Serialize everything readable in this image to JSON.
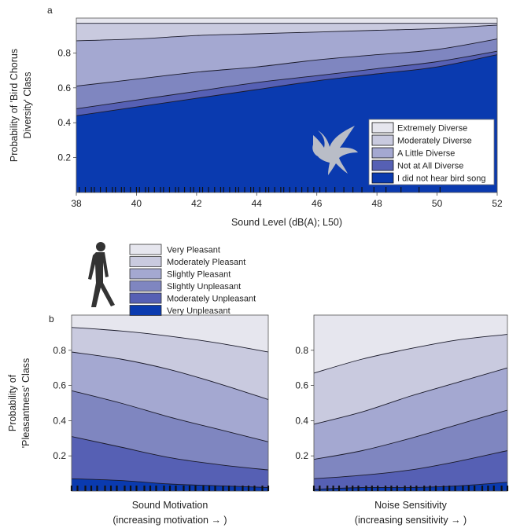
{
  "colors": {
    "band_0": "#e6e6ee",
    "band_1": "#c9cadf",
    "band_2": "#a4a8d1",
    "band_3": "#7f86c0",
    "band_4": "#5660b4",
    "band_5": "#1f3fb5",
    "band_6": "#0a3aaf"
  },
  "icons": {
    "bird": "bird-silhouette-icon",
    "walker": "walking-person-icon"
  },
  "chart_data": [
    {
      "panel_label": "a",
      "type": "area",
      "stacking": "cumulative-probability",
      "xlabel": "Sound Level (dB(A); L50)",
      "ylabel_lines": [
        "Probability of 'Bird Chorus",
        "Diversity' Class"
      ],
      "xlim": [
        38,
        52
      ],
      "ylim": [
        0,
        1
      ],
      "xticks": [
        "38",
        "40",
        "42",
        "44",
        "46",
        "48",
        "50",
        "52"
      ],
      "yticks": [
        "0.2",
        "0.4",
        "0.6",
        "0.8"
      ],
      "grid": false,
      "legend_position": "bottom-right",
      "x": [
        38,
        40,
        42,
        44,
        46,
        48,
        50,
        52
      ],
      "categories": [
        "Extremely Diverse",
        "Moderately Diverse",
        "A Little Diverse",
        "Not at All Diverse",
        "I did not hear bird song"
      ],
      "boundaries": [
        {
          "upper_class": "Moderately Diverse",
          "lower_class": "Extremely Diverse",
          "y": [
            0.97,
            0.97,
            0.97,
            0.97,
            0.97,
            0.97,
            0.97,
            0.97
          ]
        },
        {
          "upper_class": "A Little Diverse",
          "lower_class": "Moderately Diverse",
          "y": [
            0.87,
            0.88,
            0.9,
            0.91,
            0.92,
            0.93,
            0.94,
            0.96
          ]
        },
        {
          "upper_class": "Not at All Diverse",
          "lower_class": "A Little Diverse",
          "y": [
            0.61,
            0.65,
            0.69,
            0.72,
            0.76,
            0.79,
            0.82,
            0.88
          ]
        },
        {
          "upper_class": "I did not hear bird song",
          "lower_class": "Not at All Diverse",
          "y": [
            0.48,
            0.53,
            0.58,
            0.63,
            0.67,
            0.71,
            0.75,
            0.81
          ]
        },
        {
          "upper_class": "I did not hear bird song (baseline)",
          "lower_class": "",
          "y": [
            0.44,
            0.49,
            0.54,
            0.59,
            0.64,
            0.68,
            0.72,
            0.79
          ]
        }
      ],
      "rug_x": [
        38.1,
        38.3,
        38.5,
        38.6,
        38.8,
        39.0,
        39.2,
        39.3,
        39.5,
        39.6,
        39.8,
        40.0,
        40.1,
        40.3,
        40.4,
        40.6,
        40.8,
        40.9,
        41.1,
        41.3,
        41.4,
        41.6,
        41.8,
        41.9,
        42.1,
        42.2,
        42.4,
        42.6,
        42.8,
        42.9,
        43.1,
        43.3,
        43.4,
        43.6,
        43.8,
        43.9,
        44.1,
        44.3,
        44.4,
        44.6,
        44.8,
        44.9,
        45.1,
        45.3,
        45.5,
        45.7,
        45.9,
        46.1,
        46.3,
        46.6,
        46.9,
        47.2,
        47.5,
        47.9,
        48.3,
        48.8,
        49.4,
        50.1
      ]
    },
    {
      "panel_label": "b",
      "type": "area",
      "stacking": "cumulative-probability",
      "xlabel_lines": [
        "Sound Motivation",
        "(increasing motivation → )"
      ],
      "ylabel_lines": [
        "Probability of",
        "'Pleasantness' Class"
      ],
      "ylim": [
        0,
        1
      ],
      "yticks": [
        "0.2",
        "0.4",
        "0.6",
        "0.8"
      ],
      "grid": false,
      "legend_position": "top-left",
      "x": [
        0,
        0.25,
        0.5,
        0.75,
        1
      ],
      "categories": [
        "Very Pleasant",
        "Moderately Pleasant",
        "Slightly Pleasant",
        "Slightly Unpleasant",
        "Moderately Unpleasant",
        "Very Unpleasant"
      ],
      "boundaries": [
        {
          "upper_class": "Moderately Pleasant",
          "lower_class": "Very Pleasant",
          "y": [
            0.93,
            0.91,
            0.88,
            0.84,
            0.79
          ]
        },
        {
          "upper_class": "Slightly Pleasant",
          "lower_class": "Moderately Pleasant",
          "y": [
            0.79,
            0.75,
            0.69,
            0.61,
            0.52
          ]
        },
        {
          "upper_class": "Slightly Unpleasant",
          "lower_class": "Slightly Pleasant",
          "y": [
            0.57,
            0.5,
            0.42,
            0.35,
            0.28
          ]
        },
        {
          "upper_class": "Moderately Unpleasant",
          "lower_class": "Slightly Unpleasant",
          "y": [
            0.31,
            0.25,
            0.19,
            0.15,
            0.12
          ]
        },
        {
          "upper_class": "Very Unpleasant",
          "lower_class": "Moderately Unpleasant",
          "y": [
            0.07,
            0.06,
            0.04,
            0.03,
            0.02
          ]
        }
      ],
      "rug_x": [
        0.0,
        0.03,
        0.07,
        0.1,
        0.13,
        0.17,
        0.2,
        0.23,
        0.27,
        0.3,
        0.33,
        0.37,
        0.4,
        0.43,
        0.47,
        0.5,
        0.53,
        0.57,
        0.6,
        0.63,
        0.67,
        0.7,
        0.73,
        0.77,
        0.8,
        0.83,
        0.87,
        0.9,
        0.93,
        0.97,
        1.0
      ]
    },
    {
      "panel_label": "",
      "type": "area",
      "stacking": "cumulative-probability",
      "xlabel_lines": [
        "Noise Sensitivity",
        "(increasing sensitivity → )"
      ],
      "ylim": [
        0,
        1
      ],
      "yticks": [
        "0.2",
        "0.4",
        "0.6",
        "0.8"
      ],
      "grid": false,
      "x": [
        0,
        0.25,
        0.5,
        0.75,
        1
      ],
      "categories": [
        "Very Pleasant",
        "Moderately Pleasant",
        "Slightly Pleasant",
        "Slightly Unpleasant",
        "Moderately Unpleasant",
        "Very Unpleasant"
      ],
      "boundaries": [
        {
          "upper_class": "Moderately Pleasant",
          "lower_class": "Very Pleasant",
          "y": [
            0.67,
            0.75,
            0.81,
            0.86,
            0.89
          ]
        },
        {
          "upper_class": "Slightly Pleasant",
          "lower_class": "Moderately Pleasant",
          "y": [
            0.38,
            0.45,
            0.54,
            0.62,
            0.7
          ]
        },
        {
          "upper_class": "Slightly Unpleasant",
          "lower_class": "Slightly Pleasant",
          "y": [
            0.18,
            0.23,
            0.3,
            0.38,
            0.46
          ]
        },
        {
          "upper_class": "Moderately Unpleasant",
          "lower_class": "Slightly Unpleasant",
          "y": [
            0.07,
            0.09,
            0.12,
            0.17,
            0.23
          ]
        },
        {
          "upper_class": "Very Unpleasant",
          "lower_class": "Moderately Unpleasant",
          "y": [
            0.01,
            0.02,
            0.02,
            0.03,
            0.05
          ]
        }
      ],
      "rug_x": [
        0.0,
        0.03,
        0.07,
        0.1,
        0.13,
        0.17,
        0.2,
        0.23,
        0.27,
        0.3,
        0.33,
        0.37,
        0.4,
        0.43,
        0.47,
        0.5,
        0.53,
        0.57,
        0.6,
        0.63,
        0.67,
        0.7,
        0.73,
        0.77,
        0.8,
        0.83,
        0.87,
        0.9,
        0.93,
        0.97,
        1.0
      ]
    }
  ]
}
